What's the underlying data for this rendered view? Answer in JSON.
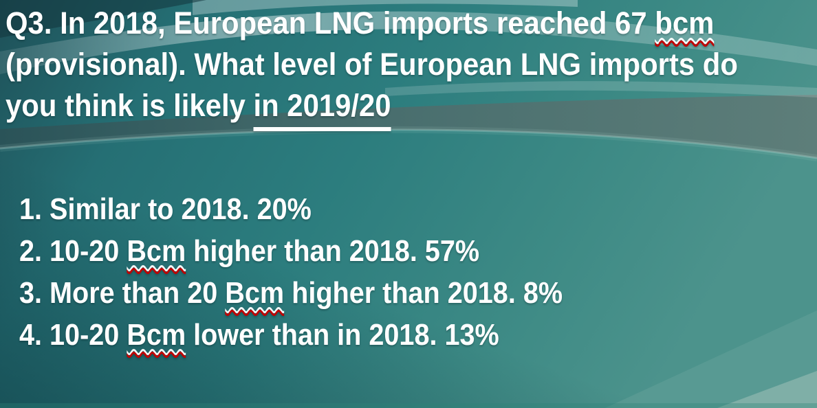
{
  "slide": {
    "question": {
      "full_text": "Q3. In 2018, European LNG imports reached 67 bcm (provisional). What level of European LNG imports do you think is likely in 2019/20",
      "lines": [
        {
          "segments": [
            {
              "text": "Q3. In 2018, European LNG imports reached 67 ",
              "style": "plain"
            },
            {
              "text": "bcm",
              "style": "wavy"
            }
          ]
        },
        {
          "segments": [
            {
              "text": "(provisional). What level of European LNG imports do",
              "style": "plain"
            }
          ]
        },
        {
          "segments": [
            {
              "text": "you think is likely ",
              "style": "plain"
            },
            {
              "text": "in 2019/20",
              "style": "underline"
            }
          ]
        }
      ]
    },
    "options": [
      {
        "segments": [
          {
            "text": "1. Similar to 2018. 20%",
            "style": "plain"
          }
        ]
      },
      {
        "segments": [
          {
            "text": "2. 10-20 ",
            "style": "plain"
          },
          {
            "text": "Bcm",
            "style": "wavy"
          },
          {
            "text": " higher than 2018. 57%",
            "style": "plain"
          }
        ]
      },
      {
        "segments": [
          {
            "text": "3. More than 20 ",
            "style": "plain"
          },
          {
            "text": "Bcm",
            "style": "wavy"
          },
          {
            "text": " higher than 2018. 8%",
            "style": "plain"
          }
        ]
      },
      {
        "segments": [
          {
            "text": "4. 10-20 ",
            "style": "plain"
          },
          {
            "text": "Bcm",
            "style": "wavy"
          },
          {
            "text": " lower than in 2018. 13%",
            "style": "plain"
          }
        ]
      }
    ],
    "colors": {
      "text": "#ffffff",
      "solid_underline": "#ffffff",
      "spellcheck_wavy": "#c00000",
      "background_dark_teal": "#1e5058",
      "background_mid_teal": "#2c7d7e",
      "background_light_teal": "#4c938c",
      "gray_band": "#5f7c78",
      "corner_highlight": "#84b1aa"
    }
  }
}
